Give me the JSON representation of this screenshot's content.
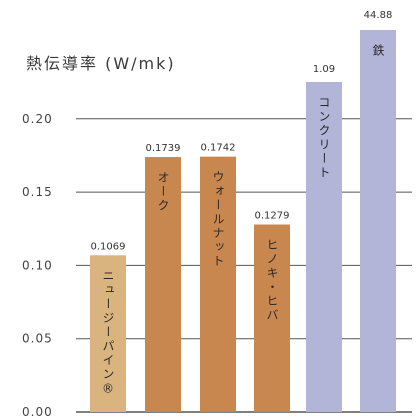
{
  "chart_data": {
    "type": "bar",
    "ylabel": "熱伝導率 (W/mk)",
    "ylim": [
      0,
      0.2
    ],
    "yticks": [
      "0.00",
      "0.05",
      "0.10",
      "0.15",
      "0.20"
    ],
    "grid": true,
    "truncated_note": "bars for コンクリート and 鉄 exceed the axis range",
    "categories": [
      "ニュージーパイン®",
      "オーク",
      "ウォールナット",
      "ヒノキ・ヒバ",
      "コンクリート",
      "鉄"
    ],
    "values": [
      0.1069,
      0.1739,
      0.1742,
      0.1279,
      1.09,
      44.88
    ],
    "value_labels": [
      "0.1069",
      "0.1739",
      "0.1742",
      "0.1279",
      "1.09",
      "44.88"
    ],
    "colors": [
      "#d9b47f",
      "#c8874f",
      "#c8874f",
      "#c8874f",
      "#b3b5d8",
      "#b3b5d8"
    ]
  }
}
